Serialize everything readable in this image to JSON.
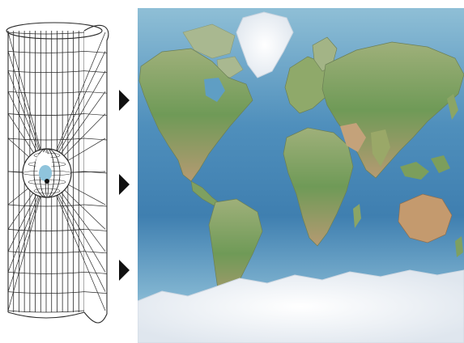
{
  "diagram": {
    "graticule": {
      "meridian_count": 14,
      "parallel_count": 12
    },
    "arrow_count": 3,
    "colors": {
      "background": "#ffffff",
      "line": "#2a2a2a",
      "globe_point": "#8fc4dc",
      "ocean_deep": "#2f6f9f",
      "ocean_mid": "#5f9ec4",
      "ocean_light": "#bcd9e6",
      "land_green": "#6f9a57",
      "land_tan": "#c4a27a",
      "ice": "#f2f4f7"
    },
    "icons": [
      "cylinder-projection-icon",
      "arrow-right-icon",
      "world-map-icon"
    ]
  }
}
